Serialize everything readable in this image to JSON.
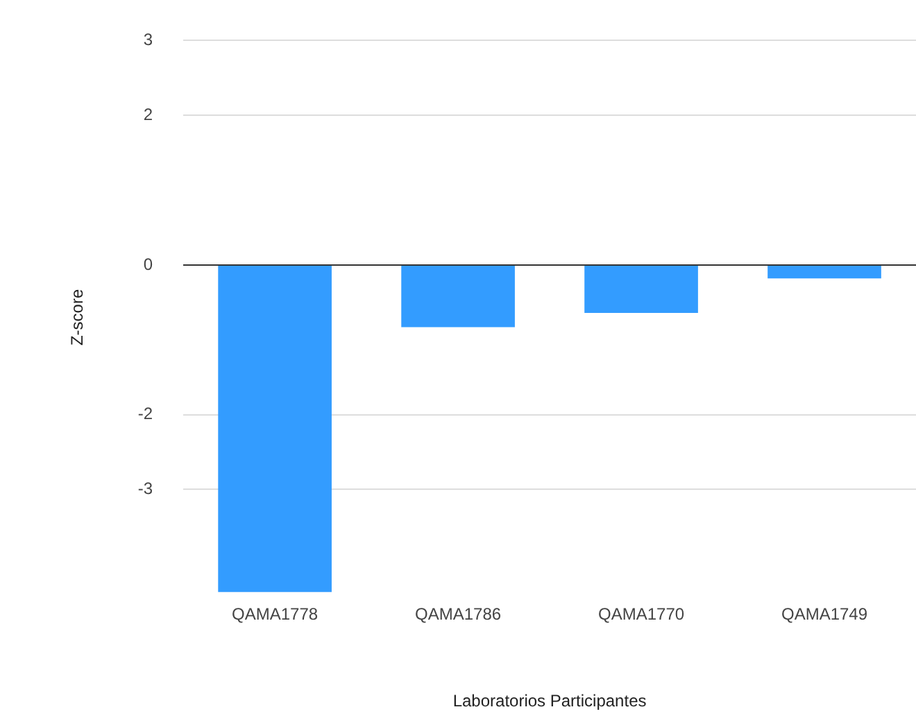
{
  "chart_data": {
    "type": "bar",
    "xlabel": "Laboratorios Participantes",
    "ylabel": "Z-score",
    "categories": [
      "QAMA1778",
      "QAMA1786",
      "QAMA1770",
      "QAMA1749"
    ],
    "values": [
      -4.37,
      -0.83,
      -0.64,
      -0.18
    ],
    "color": "#339cff",
    "ylim": [
      -4.4,
      3
    ],
    "yticks": [
      -3,
      -2,
      0,
      2,
      3
    ],
    "grid": "y",
    "legend": false
  }
}
